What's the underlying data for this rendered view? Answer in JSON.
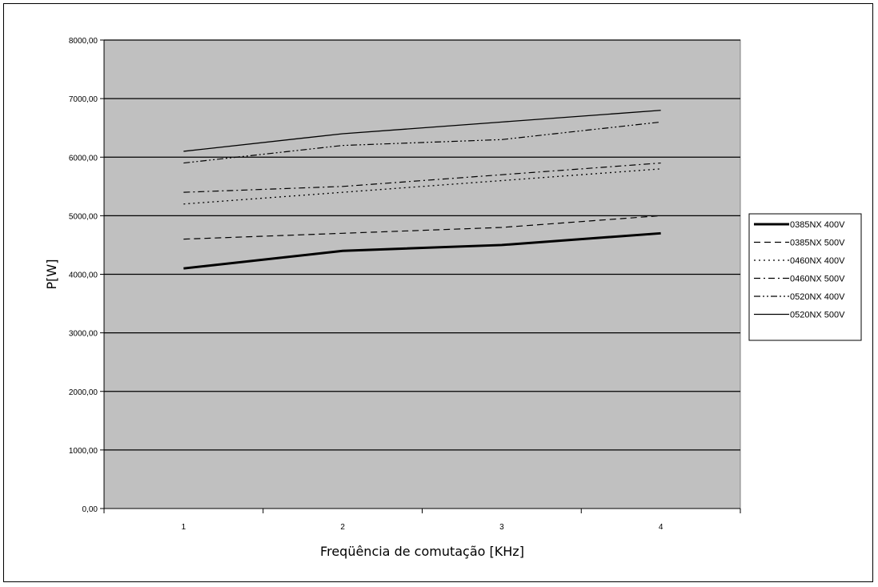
{
  "chart_data": {
    "type": "line",
    "title": "",
    "xlabel": "Freqüência de comutação [KHz]",
    "ylabel": "P[W]",
    "categories": [
      "1",
      "2",
      "3",
      "4"
    ],
    "ylim": [
      0,
      8000
    ],
    "yticks": [
      "0,00",
      "1000,00",
      "2000,00",
      "3000,00",
      "4000,00",
      "5000,00",
      "6000,00",
      "7000,00",
      "8000,00"
    ],
    "ytick_values": [
      0,
      1000,
      2000,
      3000,
      4000,
      5000,
      6000,
      7000,
      8000
    ],
    "grid": true,
    "legend_position": "right",
    "plot_background": "#c0c0c0",
    "series": [
      {
        "name": "0385NX 400V",
        "values": [
          4100,
          4400,
          4500,
          4700
        ],
        "style": "solid-thick"
      },
      {
        "name": "0385NX 500V",
        "values": [
          4600,
          4700,
          4800,
          5000
        ],
        "style": "dashed"
      },
      {
        "name": "0460NX 400V",
        "values": [
          5200,
          5400,
          5600,
          5800
        ],
        "style": "dotted"
      },
      {
        "name": "0460NX 500V",
        "values": [
          5400,
          5500,
          5700,
          5900
        ],
        "style": "dash-dot"
      },
      {
        "name": "0520NX 400V",
        "values": [
          5900,
          6200,
          6300,
          6600
        ],
        "style": "dash-dot-dot"
      },
      {
        "name": "0520NX 500V",
        "values": [
          6100,
          6400,
          6600,
          6800
        ],
        "style": "solid"
      }
    ]
  }
}
